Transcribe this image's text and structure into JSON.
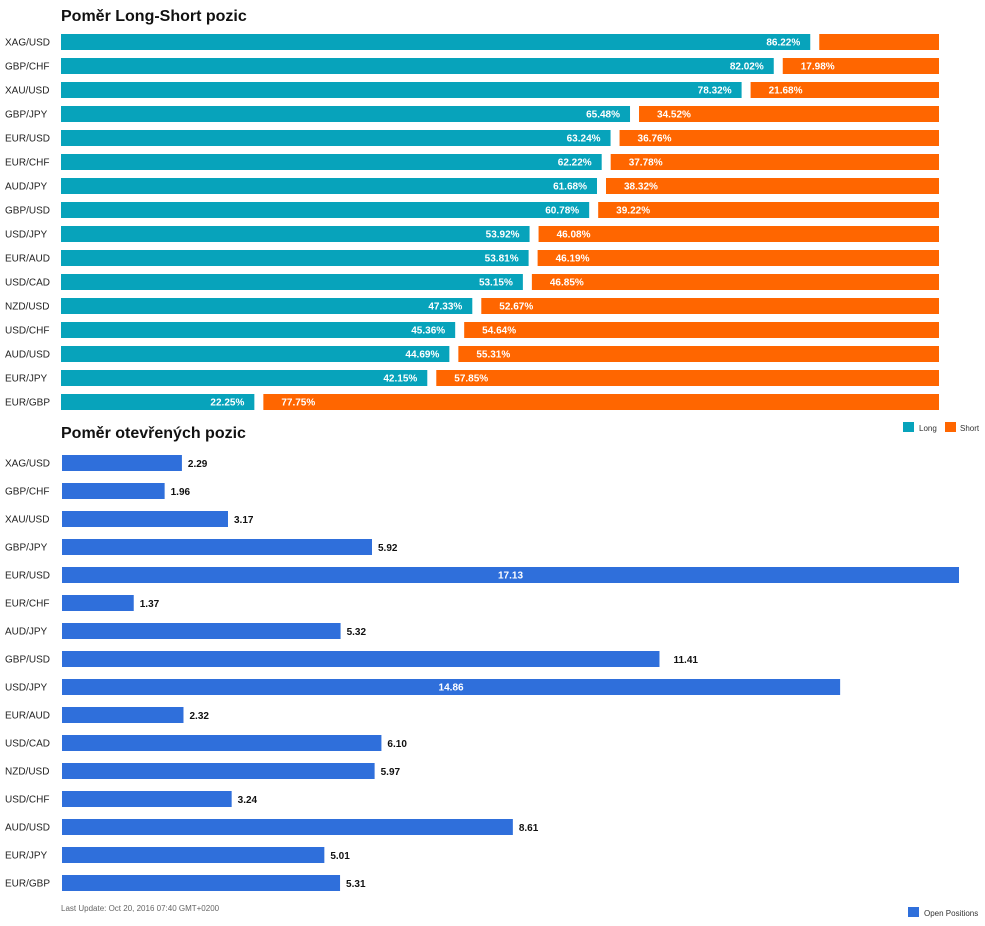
{
  "colors": {
    "long": "#07A3BB",
    "short": "#FF6600",
    "open": "#2F6FDB"
  },
  "chart_data": [
    {
      "type": "bar",
      "orientation": "horizontal",
      "stacked": true,
      "title": "Poměr Long-Short pozic",
      "categories": [
        "XAG/USD",
        "GBP/CHF",
        "XAU/USD",
        "GBP/JPY",
        "EUR/USD",
        "EUR/CHF",
        "AUD/JPY",
        "GBP/USD",
        "USD/JPY",
        "EUR/AUD",
        "USD/CAD",
        "NZD/USD",
        "USD/CHF",
        "AUD/USD",
        "EUR/JPY",
        "EUR/GBP"
      ],
      "series": [
        {
          "name": "Long",
          "values": [
            86.22,
            82.02,
            78.32,
            65.48,
            63.24,
            62.22,
            61.68,
            60.78,
            53.92,
            53.81,
            53.15,
            47.33,
            45.36,
            44.69,
            42.15,
            22.25
          ],
          "labels": [
            "86.22%",
            "82.02%",
            "78.32%",
            "65.48%",
            "63.24%",
            "62.22%",
            "61.68%",
            "60.78%",
            "53.92%",
            "53.81%",
            "53.15%",
            "47.33%",
            "45.36%",
            "44.69%",
            "42.15%",
            "22.25%"
          ]
        },
        {
          "name": "Short",
          "values": [
            13.78,
            17.98,
            21.68,
            34.52,
            36.76,
            37.78,
            38.32,
            39.22,
            46.08,
            46.19,
            46.85,
            52.67,
            54.64,
            55.31,
            57.85,
            77.75
          ],
          "labels": [
            "",
            "17.98%",
            "21.68%",
            "34.52%",
            "36.76%",
            "37.78%",
            "38.32%",
            "39.22%",
            "46.08%",
            "46.19%",
            "46.85%",
            "52.67%",
            "54.64%",
            "55.31%",
            "57.85%",
            "77.75%"
          ]
        }
      ],
      "xlim": [
        0,
        100
      ],
      "legend": "bottom-right",
      "grid": false
    },
    {
      "type": "bar",
      "orientation": "horizontal",
      "title": "Poměr otevřených pozic",
      "categories": [
        "XAG/USD",
        "GBP/CHF",
        "XAU/USD",
        "GBP/JPY",
        "EUR/USD",
        "EUR/CHF",
        "AUD/JPY",
        "GBP/USD",
        "USD/JPY",
        "EUR/AUD",
        "USD/CAD",
        "NZD/USD",
        "USD/CHF",
        "AUD/USD",
        "EUR/JPY",
        "EUR/GBP"
      ],
      "series": [
        {
          "name": "Open Positions",
          "values": [
            2.29,
            1.96,
            3.17,
            5.92,
            17.13,
            1.37,
            5.32,
            11.41,
            14.86,
            2.32,
            6.1,
            5.97,
            3.24,
            8.61,
            5.01,
            5.31
          ],
          "labels": [
            "2.29",
            "1.96",
            "3.17",
            "5.92",
            "17.13",
            "1.37",
            "5.32",
            "11.41",
            "14.86",
            "2.32",
            "6.10",
            "5.97",
            "3.24",
            "8.61",
            "5.01",
            "5.31"
          ]
        }
      ],
      "xlim": [
        0,
        17.13
      ],
      "legend": "bottom-right",
      "grid": false
    }
  ],
  "footer": {
    "last_update": "Last Update: Oct 20, 2016 07:40 GMT+0200"
  }
}
